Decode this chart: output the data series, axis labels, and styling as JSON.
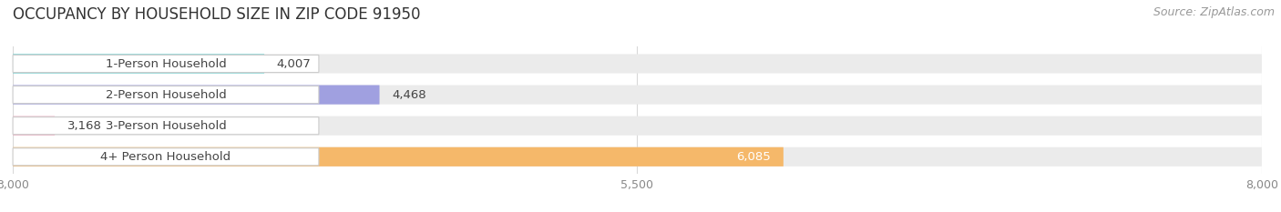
{
  "title": "OCCUPANCY BY HOUSEHOLD SIZE IN ZIP CODE 91950",
  "source": "Source: ZipAtlas.com",
  "categories": [
    "1-Person Household",
    "2-Person Household",
    "3-Person Household",
    "4+ Person Household"
  ],
  "values": [
    4007,
    4468,
    3168,
    6085
  ],
  "bar_colors": [
    "#5ecfcf",
    "#a0a0e0",
    "#f2aac0",
    "#f5b86a"
  ],
  "xlim": [
    3000,
    8000
  ],
  "xticks": [
    3000,
    5500,
    8000
  ],
  "title_fontsize": 12,
  "source_fontsize": 9,
  "label_fontsize": 9.5,
  "value_fontsize": 9.5,
  "background_color": "#ffffff"
}
